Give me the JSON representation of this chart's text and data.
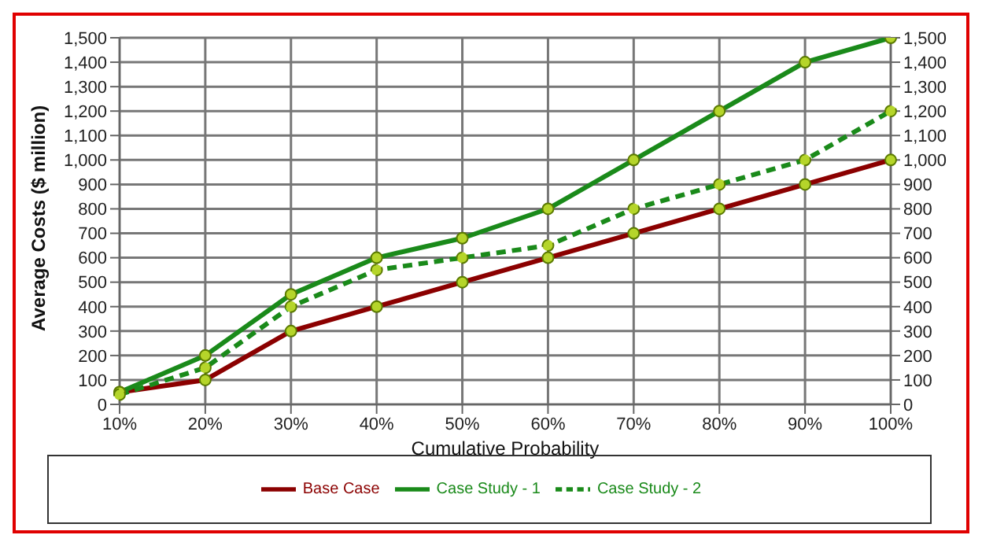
{
  "chart_data": {
    "type": "line",
    "ylabel": "Average Costs ($ million)",
    "xlabel": "Cumulative Probability",
    "categories": [
      "10%",
      "20%",
      "30%",
      "40%",
      "50%",
      "60%",
      "70%",
      "80%",
      "90%",
      "100%"
    ],
    "series": [
      {
        "name": "Base Case",
        "color": "#8b0000",
        "values": [
          50,
          100,
          300,
          400,
          500,
          600,
          700,
          800,
          900,
          1000
        ],
        "line_style": "solid"
      },
      {
        "name": "Case Study - 1",
        "color": "#1a8a1a",
        "values": [
          50,
          200,
          450,
          600,
          680,
          800,
          1000,
          1200,
          1400,
          1500
        ],
        "line_style": "solid"
      },
      {
        "name": "Case Study - 2",
        "color": "#1a8a1a",
        "values": [
          40,
          150,
          400,
          550,
          600,
          650,
          800,
          900,
          1000,
          1200
        ],
        "line_style": "dashed"
      }
    ],
    "ylim": [
      0,
      1500
    ],
    "yticks": [
      0,
      100,
      200,
      300,
      400,
      500,
      600,
      700,
      800,
      900,
      {
        "value": 1000,
        "label": "1,000"
      },
      {
        "value": 1100,
        "label": "1,100"
      },
      {
        "value": 1200,
        "label": "1,200"
      },
      {
        "value": 1300,
        "label": "1,300"
      },
      {
        "value": 1400,
        "label": "1,400"
      },
      {
        "value": 1500,
        "label": "1,500"
      }
    ],
    "y2lim": [
      0,
      1500
    ],
    "y2ticks": [
      0,
      100,
      200,
      300,
      400,
      500,
      600,
      700,
      800,
      900,
      {
        "value": 1000,
        "label": "1,000"
      },
      {
        "value": 1100,
        "label": "1,100"
      },
      {
        "value": 1200,
        "label": "1,200"
      },
      {
        "value": 1300,
        "label": "1,300"
      },
      {
        "value": 1400,
        "label": "1,400"
      },
      {
        "value": 1500,
        "label": "1,500"
      }
    ],
    "grid": true,
    "legend": "bottom",
    "marker": "circle"
  }
}
